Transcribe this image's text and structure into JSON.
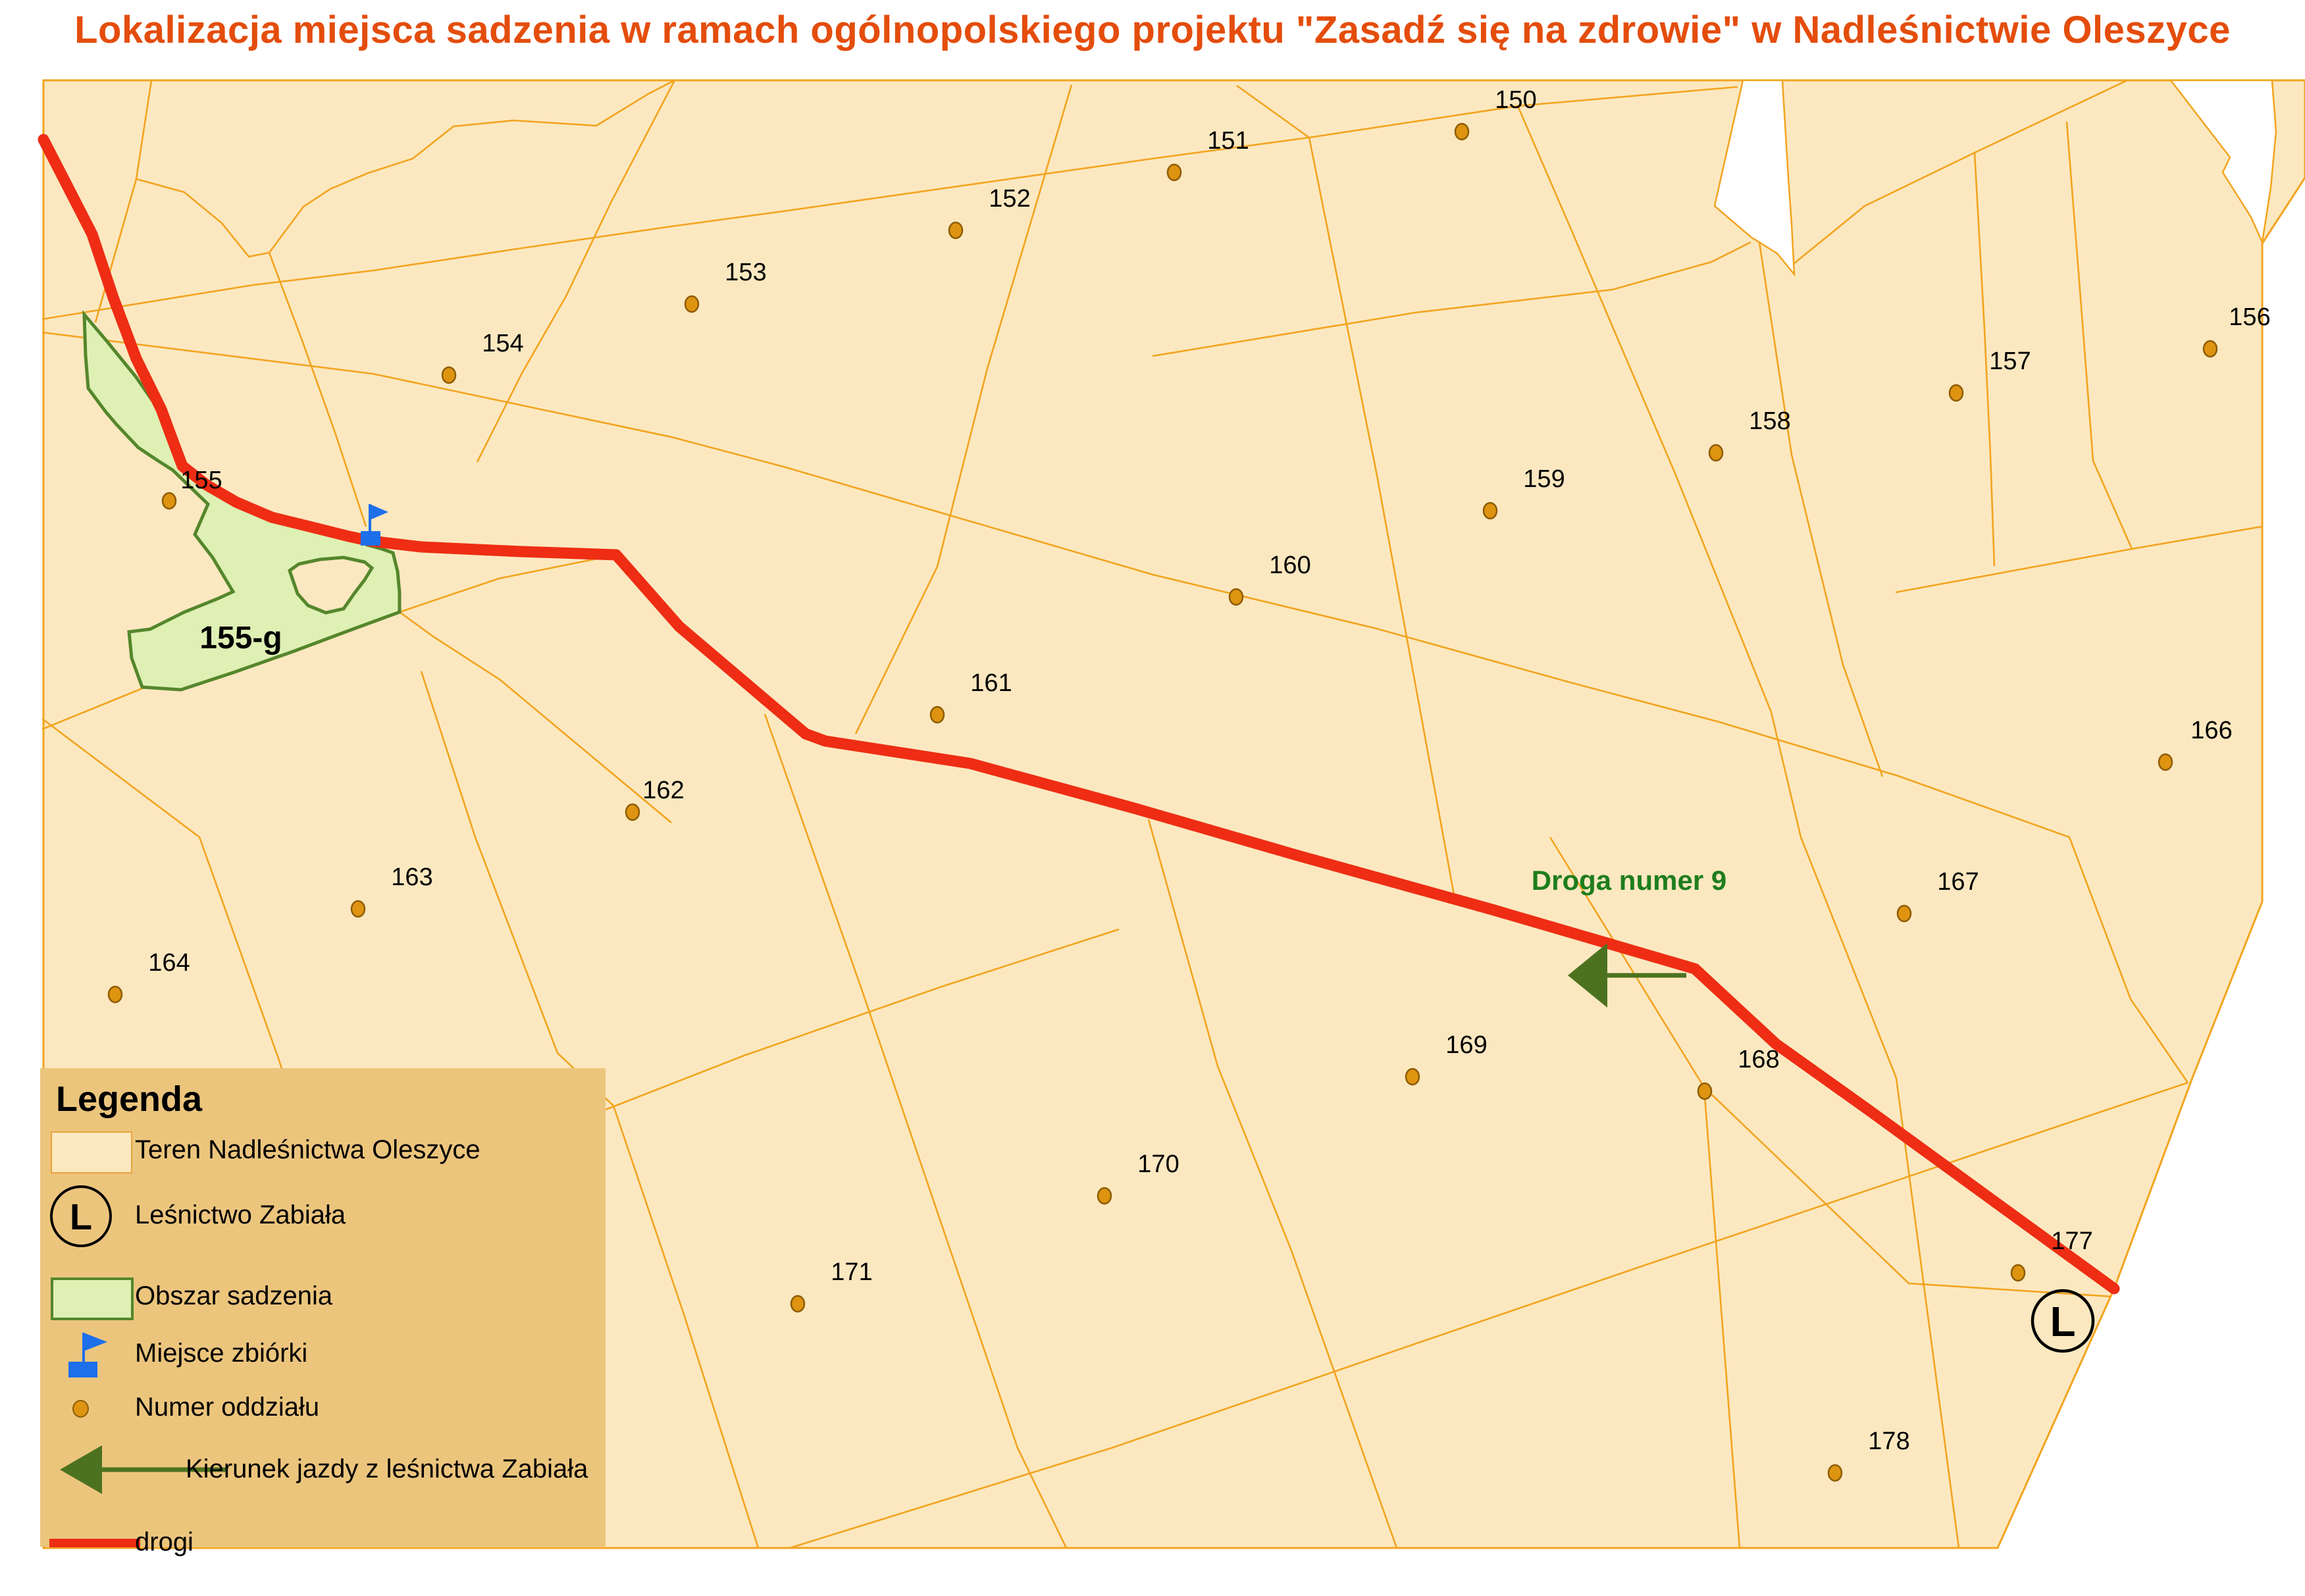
{
  "title": {
    "text": "Lokalizacja miejsca sadzenia w ramach ogólnopolskiego projektu \"Zasadź się na zdrowie\" w Nadleśnictwie Oleszyce"
  },
  "map": {
    "planting_area_label": "155-g",
    "road_label": "Droga numer 9",
    "forester_symbol": "L",
    "compartments": [
      {
        "id": "150",
        "dot": [
          2221,
          200
        ],
        "label": [
          2303,
          151
        ]
      },
      {
        "id": "151",
        "dot": [
          1784,
          262
        ],
        "label": [
          1866,
          213
        ]
      },
      {
        "id": "152",
        "dot": [
          1452,
          350
        ],
        "label": [
          1534,
          301
        ]
      },
      {
        "id": "153",
        "dot": [
          1051,
          462
        ],
        "label": [
          1133,
          413
        ]
      },
      {
        "id": "154",
        "dot": [
          682,
          570
        ],
        "label": [
          764,
          521
        ]
      },
      {
        "id": "155",
        "dot": [
          257,
          761
        ],
        "label": [
          306,
          729
        ]
      },
      {
        "id": "156",
        "dot": [
          3358,
          530
        ],
        "label": [
          3418,
          481
        ]
      },
      {
        "id": "157",
        "dot": [
          2972,
          597
        ],
        "label": [
          3054,
          548
        ]
      },
      {
        "id": "158",
        "dot": [
          2607,
          688
        ],
        "label": [
          2689,
          639
        ]
      },
      {
        "id": "159",
        "dot": [
          2264,
          776
        ],
        "label": [
          2346,
          727
        ]
      },
      {
        "id": "160",
        "dot": [
          1878,
          907
        ],
        "label": [
          1960,
          858
        ]
      },
      {
        "id": "161",
        "dot": [
          1424,
          1086
        ],
        "label": [
          1506,
          1037
        ]
      },
      {
        "id": "162",
        "dot": [
          961,
          1234
        ],
        "label": [
          1008,
          1200
        ]
      },
      {
        "id": "163",
        "dot": [
          544,
          1381
        ],
        "label": [
          626,
          1332
        ]
      },
      {
        "id": "164",
        "dot": [
          175,
          1511
        ],
        "label": [
          257,
          1462
        ]
      },
      {
        "id": "166",
        "dot": [
          3290,
          1158
        ],
        "label": [
          3360,
          1109
        ]
      },
      {
        "id": "167",
        "dot": [
          2893,
          1388
        ],
        "label": [
          2975,
          1339
        ]
      },
      {
        "id": "168",
        "dot": [
          2590,
          1658
        ],
        "label": [
          2672,
          1609
        ]
      },
      {
        "id": "169",
        "dot": [
          2146,
          1636
        ],
        "label": [
          2228,
          1587
        ]
      },
      {
        "id": "170",
        "dot": [
          1678,
          1817
        ],
        "label": [
          1760,
          1768
        ]
      },
      {
        "id": "171",
        "dot": [
          1212,
          1981
        ],
        "label": [
          1294,
          1932
        ]
      },
      {
        "id": "177",
        "dot": [
          3066,
          1934
        ],
        "label": [
          3148,
          1885
        ]
      },
      {
        "id": "178",
        "dot": [
          2788,
          2238
        ],
        "label": [
          2870,
          2189
        ]
      }
    ]
  },
  "legend": {
    "title": "Legenda",
    "items": [
      {
        "label": "Teren Nadleśnictwa Oleszyce",
        "icon": "area-swatch"
      },
      {
        "label": "Leśnictwo Zabiała",
        "icon": "l-circle"
      },
      {
        "label": "Obszar sadzenia",
        "icon": "planting-swatch"
      },
      {
        "label": "Miejsce zbiórki",
        "icon": "meeting-flag"
      },
      {
        "label": "Numer oddziału",
        "icon": "compartment-dot"
      },
      {
        "label": "Kierunek jazdy z leśnictwa Zabiała",
        "icon": "direction-arrow"
      },
      {
        "label": "drogi",
        "icon": "road-line"
      }
    ]
  },
  "colors": {
    "title_text": "#e44d0c",
    "map_fill": "#fce8c0",
    "boundary_line": "#f2a41f",
    "legend_bg": "#ecc57d",
    "road": "#ee2d14",
    "planting_fill": "#def0b4",
    "planting_stroke": "#55862c",
    "dot_fill": "#de9410",
    "dot_stroke": "#8e5d05",
    "road_label": "#1e7d1e",
    "arrow": "#4c7220",
    "flag": "#1d6fea",
    "label_text": "#000000"
  }
}
